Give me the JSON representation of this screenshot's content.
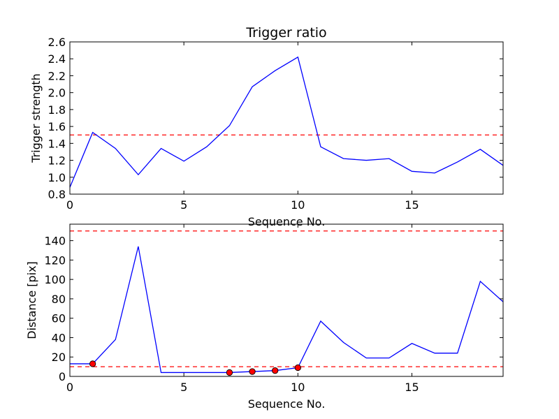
{
  "chart_data": [
    {
      "type": "line",
      "title": "Trigger ratio",
      "xlabel": "Sequence No.",
      "ylabel": "Trigger strength",
      "xlim": [
        0,
        19
      ],
      "ylim": [
        0.8,
        2.6
      ],
      "xticks": [
        0,
        5,
        10,
        15
      ],
      "yticks": [
        0.8,
        1.0,
        1.2,
        1.4,
        1.6,
        1.8,
        2.0,
        2.2,
        2.4,
        2.6
      ],
      "grid": false,
      "series": [
        {
          "color": "#0000ff",
          "x": [
            0,
            1,
            2,
            3,
            4,
            5,
            6,
            7,
            8,
            9,
            10,
            11,
            12,
            13,
            14,
            15,
            16,
            17,
            18,
            19
          ],
          "y": [
            0.88,
            1.53,
            1.34,
            1.03,
            1.34,
            1.19,
            1.36,
            1.61,
            2.07,
            2.26,
            2.42,
            1.36,
            1.22,
            1.2,
            1.22,
            1.07,
            1.05,
            1.18,
            1.33,
            1.14
          ]
        }
      ],
      "hlines": [
        {
          "y": 1.5,
          "color": "#ff0000",
          "style": "dashed"
        }
      ]
    },
    {
      "type": "line",
      "title": "",
      "xlabel": "Sequence No.",
      "ylabel": "Distance [pix]",
      "xlim": [
        0,
        19
      ],
      "ylim": [
        0,
        157
      ],
      "xticks": [
        0,
        5,
        10,
        15
      ],
      "yticks": [
        0,
        20,
        40,
        60,
        80,
        100,
        120,
        140
      ],
      "grid": false,
      "series": [
        {
          "color": "#0000ff",
          "x": [
            0,
            1,
            2,
            3,
            4,
            5,
            6,
            7,
            8,
            9,
            10,
            11,
            12,
            13,
            14,
            15,
            16,
            17,
            18,
            19
          ],
          "y": [
            13,
            13,
            38,
            134,
            4,
            4,
            4,
            4,
            5,
            6,
            9,
            57,
            35,
            19,
            19,
            34,
            24,
            24,
            98,
            77
          ]
        }
      ],
      "markers": {
        "color": "#ff0000",
        "x": [
          1,
          7,
          8,
          9,
          10
        ],
        "y": [
          13,
          4,
          5,
          6,
          9
        ]
      },
      "hlines": [
        {
          "y": 150,
          "color": "#ff0000",
          "style": "dashed"
        },
        {
          "y": 10,
          "color": "#ff0000",
          "style": "dashed"
        }
      ]
    }
  ]
}
